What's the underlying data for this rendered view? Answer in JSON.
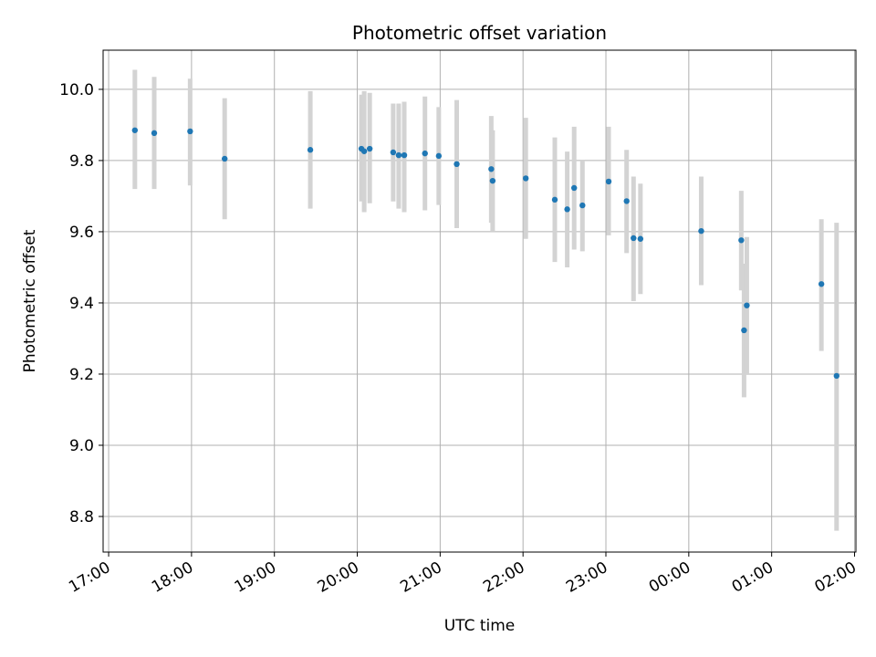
{
  "chart_data": {
    "type": "scatter",
    "title": "Photometric offset variation",
    "xlabel": "UTC time",
    "ylabel": "Photometric offset",
    "x_ticks": [
      "17:00",
      "18:00",
      "19:00",
      "20:00",
      "21:00",
      "22:00",
      "23:00",
      "00:00",
      "01:00",
      "02:00"
    ],
    "y_ticks": [
      "8.8",
      "9.0",
      "9.2",
      "9.4",
      "9.6",
      "9.8",
      "10.0"
    ],
    "y_tick_values": [
      8.8,
      9.0,
      9.2,
      9.4,
      9.6,
      9.8,
      10.0
    ],
    "xlim": [
      "16:56",
      "02:01"
    ],
    "ylim": [
      8.7,
      10.11
    ],
    "grid": true,
    "errorbar_color": "#d3d3d3",
    "point_color": "#1f77b4",
    "points": [
      {
        "t": "17:19",
        "y": 9.885,
        "lo": 9.72,
        "hi": 10.055
      },
      {
        "t": "17:33",
        "y": 9.877,
        "lo": 9.72,
        "hi": 10.035
      },
      {
        "t": "17:59",
        "y": 9.882,
        "lo": 9.73,
        "hi": 10.03
      },
      {
        "t": "18:24",
        "y": 9.805,
        "lo": 9.635,
        "hi": 9.975
      },
      {
        "t": "19:26",
        "y": 9.83,
        "lo": 9.665,
        "hi": 9.995
      },
      {
        "t": "20:03",
        "y": 9.833,
        "lo": 9.685,
        "hi": 9.985
      },
      {
        "t": "20:05",
        "y": 9.826,
        "lo": 9.655,
        "hi": 9.995
      },
      {
        "t": "20:09",
        "y": 9.833,
        "lo": 9.68,
        "hi": 9.99
      },
      {
        "t": "20:26",
        "y": 9.823,
        "lo": 9.685,
        "hi": 9.96
      },
      {
        "t": "20:30",
        "y": 9.815,
        "lo": 9.665,
        "hi": 9.96
      },
      {
        "t": "20:34",
        "y": 9.815,
        "lo": 9.655,
        "hi": 9.965
      },
      {
        "t": "20:49",
        "y": 9.82,
        "lo": 9.66,
        "hi": 9.98
      },
      {
        "t": "20:59",
        "y": 9.813,
        "lo": 9.675,
        "hi": 9.95
      },
      {
        "t": "21:12",
        "y": 9.79,
        "lo": 9.61,
        "hi": 9.97
      },
      {
        "t": "21:37",
        "y": 9.776,
        "lo": 9.625,
        "hi": 9.925
      },
      {
        "t": "21:38",
        "y": 9.743,
        "lo": 9.6,
        "hi": 9.885
      },
      {
        "t": "22:02",
        "y": 9.75,
        "lo": 9.58,
        "hi": 9.92
      },
      {
        "t": "22:23",
        "y": 9.69,
        "lo": 9.515,
        "hi": 9.865
      },
      {
        "t": "22:32",
        "y": 9.663,
        "lo": 9.5,
        "hi": 9.825
      },
      {
        "t": "22:37",
        "y": 9.723,
        "lo": 9.55,
        "hi": 9.895
      },
      {
        "t": "22:43",
        "y": 9.674,
        "lo": 9.545,
        "hi": 9.8
      },
      {
        "t": "23:02",
        "y": 9.741,
        "lo": 9.59,
        "hi": 9.895
      },
      {
        "t": "23:15",
        "y": 9.686,
        "lo": 9.54,
        "hi": 9.83
      },
      {
        "t": "23:20",
        "y": 9.582,
        "lo": 9.405,
        "hi": 9.755
      },
      {
        "t": "23:25",
        "y": 9.58,
        "lo": 9.425,
        "hi": 9.735
      },
      {
        "t": "00:09",
        "y": 9.602,
        "lo": 9.45,
        "hi": 9.755
      },
      {
        "t": "00:38",
        "y": 9.576,
        "lo": 9.435,
        "hi": 9.715
      },
      {
        "t": "00:40",
        "y": 9.323,
        "lo": 9.135,
        "hi": 9.51
      },
      {
        "t": "00:42",
        "y": 9.393,
        "lo": 9.2,
        "hi": 9.585
      },
      {
        "t": "01:36",
        "y": 9.453,
        "lo": 9.265,
        "hi": 9.635
      },
      {
        "t": "01:47",
        "y": 9.195,
        "lo": 8.76,
        "hi": 9.625
      }
    ]
  }
}
